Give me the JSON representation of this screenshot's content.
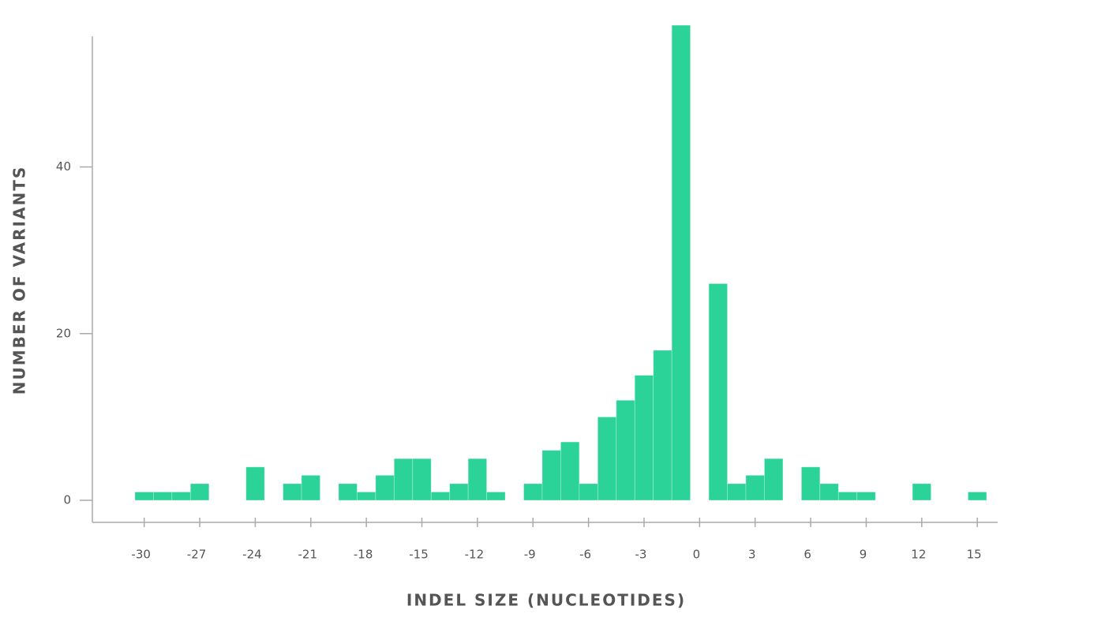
{
  "chart_data": {
    "type": "histogram",
    "x_label": "INDEL SIZE (NUCLEOTIDES)",
    "y_label": "NUMBER OF VARIANTS",
    "bins": [
      -30.5,
      -29.5,
      -28.5,
      -27.5,
      -26.5,
      -25.5,
      -24.5,
      -23.5,
      -22.5,
      -21.5,
      -20.5,
      -19.5,
      -18.5,
      -17.5,
      -16.5,
      -15.5,
      -14.5,
      -13.5,
      -12.5,
      -11.5,
      -10.5,
      -9.5,
      -8.5,
      -7.5,
      -6.5,
      -5.5,
      -4.5,
      -3.5,
      -2.5,
      -1.5,
      -0.5,
      0.5,
      1.5,
      2.5,
      3.5,
      4.5,
      5.5,
      6.5,
      7.5,
      8.5,
      9.5,
      10.5,
      11.5,
      12.5,
      13.5,
      14.5,
      15.5
    ],
    "counts": [
      1,
      1,
      1,
      2,
      0,
      0,
      4,
      0,
      2,
      3,
      0,
      2,
      1,
      3,
      5,
      5,
      1,
      2,
      5,
      1,
      0,
      2,
      6,
      7,
      2,
      10,
      12,
      15,
      18,
      57,
      0,
      26,
      2,
      3,
      5,
      0,
      4,
      2,
      1,
      1,
      0,
      0,
      2,
      0,
      0,
      1
    ],
    "color": "#2bd398",
    "xlim": [
      -32.8,
      16.1
    ],
    "ylim": [
      -2.6,
      57
    ],
    "xticks": [
      -30,
      -27,
      -24,
      -21,
      -18,
      -15,
      -12,
      -9,
      -6,
      -3,
      0,
      3,
      6,
      9,
      12,
      15
    ],
    "yticks": [
      0,
      20,
      40
    ]
  }
}
